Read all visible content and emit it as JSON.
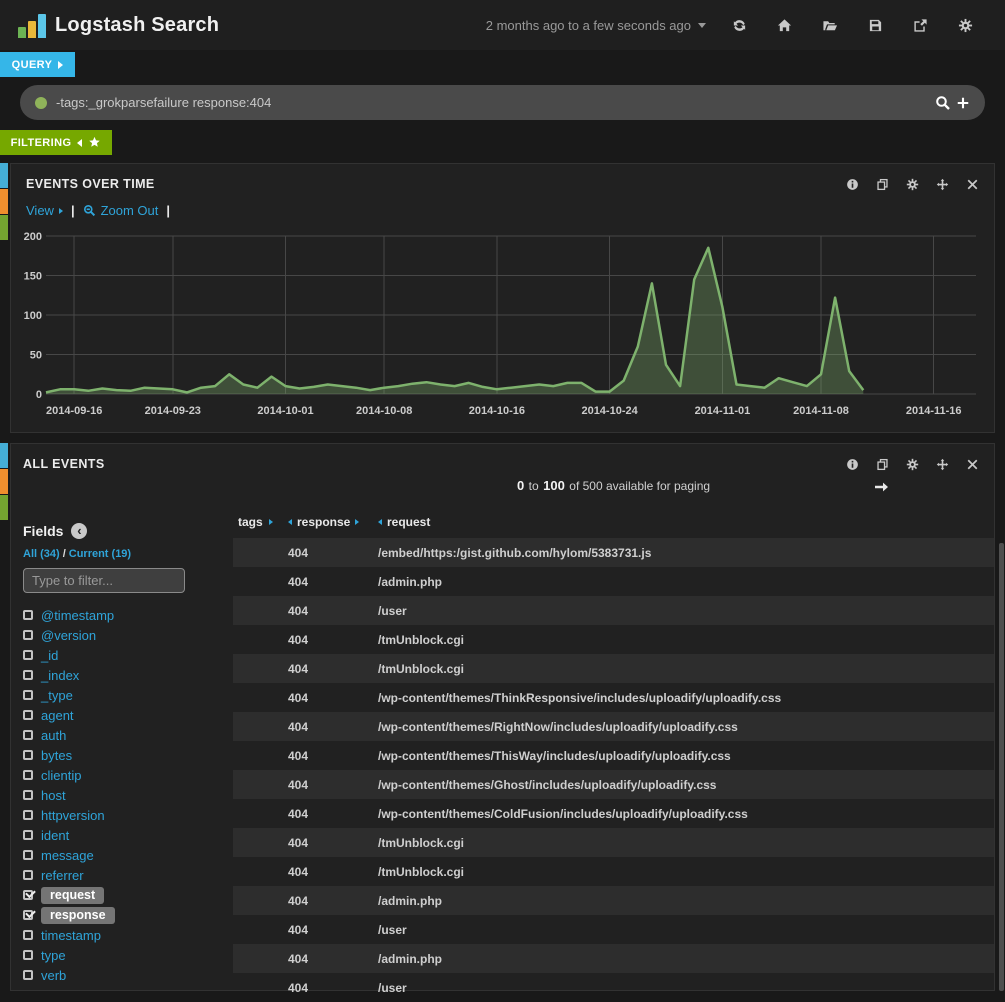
{
  "header": {
    "title": "Logstash Search",
    "timespan": "2 months ago to a few seconds ago",
    "icons": [
      "refresh-icon",
      "home-icon",
      "folder-open-icon",
      "save-icon",
      "share-icon",
      "gear-icon"
    ]
  },
  "query": {
    "tab_label": "QUERY",
    "value": "-tags:_grokparsefailure response:404",
    "icons": [
      "query-status-dot-icon",
      "search-icon",
      "add-query-icon"
    ]
  },
  "filtering": {
    "tab_label": "FILTERING",
    "icons": [
      "collapse-icon",
      "star-icon"
    ]
  },
  "events_panel": {
    "title": "EVENTS OVER TIME",
    "menu": {
      "view_label": "View",
      "zoom_out_label": "Zoom Out",
      "separator": "|"
    },
    "icons": [
      "info-icon",
      "duplicate-icon",
      "gear-icon",
      "move-icon",
      "close-icon"
    ]
  },
  "chart_data": {
    "type": "area",
    "title": "EVENTS OVER TIME",
    "xlabel": "",
    "ylabel": "",
    "ylim": [
      0,
      200
    ],
    "yticks": [
      0,
      50,
      100,
      150,
      200
    ],
    "xticks": [
      "2014-09-16",
      "2014-09-23",
      "2014-10-01",
      "2014-10-08",
      "2014-10-16",
      "2014-10-24",
      "2014-11-01",
      "2014-11-08",
      "2014-11-16"
    ],
    "x_range": [
      "2014-09-14",
      "2014-11-19"
    ],
    "grid": true,
    "legend": "none",
    "series": [
      {
        "name": "events",
        "color": "#7eb26d",
        "fill": "rgba(126,178,109,0.32)",
        "points": [
          [
            "2014-09-14",
            2
          ],
          [
            "2014-09-15",
            6
          ],
          [
            "2014-09-16",
            6
          ],
          [
            "2014-09-17",
            4
          ],
          [
            "2014-09-18",
            7
          ],
          [
            "2014-09-19",
            5
          ],
          [
            "2014-09-20",
            4
          ],
          [
            "2014-09-21",
            8
          ],
          [
            "2014-09-22",
            7
          ],
          [
            "2014-09-23",
            6
          ],
          [
            "2014-09-24",
            2
          ],
          [
            "2014-09-25",
            8
          ],
          [
            "2014-09-26",
            10
          ],
          [
            "2014-09-27",
            25
          ],
          [
            "2014-09-28",
            12
          ],
          [
            "2014-09-29",
            8
          ],
          [
            "2014-09-30",
            22
          ],
          [
            "2014-10-01",
            10
          ],
          [
            "2014-10-02",
            7
          ],
          [
            "2014-10-03",
            9
          ],
          [
            "2014-10-04",
            12
          ],
          [
            "2014-10-05",
            10
          ],
          [
            "2014-10-06",
            8
          ],
          [
            "2014-10-07",
            5
          ],
          [
            "2014-10-08",
            8
          ],
          [
            "2014-10-09",
            10
          ],
          [
            "2014-10-10",
            13
          ],
          [
            "2014-10-11",
            15
          ],
          [
            "2014-10-12",
            12
          ],
          [
            "2014-10-13",
            10
          ],
          [
            "2014-10-14",
            14
          ],
          [
            "2014-10-15",
            9
          ],
          [
            "2014-10-16",
            6
          ],
          [
            "2014-10-17",
            8
          ],
          [
            "2014-10-18",
            10
          ],
          [
            "2014-10-19",
            12
          ],
          [
            "2014-10-20",
            10
          ],
          [
            "2014-10-21",
            14
          ],
          [
            "2014-10-22",
            14
          ],
          [
            "2014-10-23",
            3
          ],
          [
            "2014-10-24",
            3
          ],
          [
            "2014-10-25",
            17
          ],
          [
            "2014-10-26",
            60
          ],
          [
            "2014-10-27",
            140
          ],
          [
            "2014-10-28",
            37
          ],
          [
            "2014-10-29",
            10
          ],
          [
            "2014-10-30",
            145
          ],
          [
            "2014-10-31",
            185
          ],
          [
            "2014-11-01",
            110
          ],
          [
            "2014-11-02",
            12
          ],
          [
            "2014-11-03",
            10
          ],
          [
            "2014-11-04",
            8
          ],
          [
            "2014-11-05",
            20
          ],
          [
            "2014-11-06",
            15
          ],
          [
            "2014-11-07",
            10
          ],
          [
            "2014-11-08",
            25
          ],
          [
            "2014-11-09",
            122
          ],
          [
            "2014-11-10",
            29
          ],
          [
            "2014-11-11",
            5
          ]
        ]
      }
    ]
  },
  "all_events_panel": {
    "title": "ALL EVENTS",
    "icons": [
      "info-icon",
      "duplicate-icon",
      "gear-icon",
      "move-icon",
      "close-icon"
    ],
    "paging": {
      "from": "0",
      "to_word": "to",
      "to": "100",
      "suffix": "of 500 available for paging"
    }
  },
  "fields": {
    "title": "Fields",
    "all_label": "All (34)",
    "separator": "/",
    "current_label": "Current (19)",
    "filter_placeholder": "Type to filter...",
    "items": [
      {
        "name": "@timestamp",
        "checked": false
      },
      {
        "name": "@version",
        "checked": false
      },
      {
        "name": "_id",
        "checked": false
      },
      {
        "name": "_index",
        "checked": false
      },
      {
        "name": "_type",
        "checked": false
      },
      {
        "name": "agent",
        "checked": false
      },
      {
        "name": "auth",
        "checked": false
      },
      {
        "name": "bytes",
        "checked": false
      },
      {
        "name": "clientip",
        "checked": false
      },
      {
        "name": "host",
        "checked": false
      },
      {
        "name": "httpversion",
        "checked": false
      },
      {
        "name": "ident",
        "checked": false
      },
      {
        "name": "message",
        "checked": false
      },
      {
        "name": "referrer",
        "checked": false
      },
      {
        "name": "request",
        "checked": true
      },
      {
        "name": "response",
        "checked": true
      },
      {
        "name": "timestamp",
        "checked": false
      },
      {
        "name": "type",
        "checked": false
      },
      {
        "name": "verb",
        "checked": false
      }
    ]
  },
  "table": {
    "columns": {
      "tags": "tags",
      "response": "response",
      "request": "request"
    },
    "rows": [
      {
        "tags": "",
        "response": "404",
        "request": "/embed/https:/gist.github.com/hylom/5383731.js"
      },
      {
        "tags": "",
        "response": "404",
        "request": "/admin.php"
      },
      {
        "tags": "",
        "response": "404",
        "request": "/user"
      },
      {
        "tags": "",
        "response": "404",
        "request": "/tmUnblock.cgi"
      },
      {
        "tags": "",
        "response": "404",
        "request": "/tmUnblock.cgi"
      },
      {
        "tags": "",
        "response": "404",
        "request": "/wp-content/themes/ThinkResponsive/includes/uploadify/uploadify.css"
      },
      {
        "tags": "",
        "response": "404",
        "request": "/wp-content/themes/RightNow/includes/uploadify/uploadify.css"
      },
      {
        "tags": "",
        "response": "404",
        "request": "/wp-content/themes/ThisWay/includes/uploadify/uploadify.css"
      },
      {
        "tags": "",
        "response": "404",
        "request": "/wp-content/themes/Ghost/includes/uploadify/uploadify.css"
      },
      {
        "tags": "",
        "response": "404",
        "request": "/wp-content/themes/ColdFusion/includes/uploadify/uploadify.css"
      },
      {
        "tags": "",
        "response": "404",
        "request": "/tmUnblock.cgi"
      },
      {
        "tags": "",
        "response": "404",
        "request": "/tmUnblock.cgi"
      },
      {
        "tags": "",
        "response": "404",
        "request": "/admin.php"
      },
      {
        "tags": "",
        "response": "404",
        "request": "/user"
      },
      {
        "tags": "",
        "response": "404",
        "request": "/admin.php"
      },
      {
        "tags": "",
        "response": "404",
        "request": "/user"
      }
    ]
  },
  "colors": {
    "accent_blue": "#35b6e8",
    "accent_green": "#76a800",
    "edge_blue": "#45aed6",
    "edge_orange": "#ef8f2e",
    "edge_green": "#74a530",
    "chart_line": "#7eb26d"
  }
}
